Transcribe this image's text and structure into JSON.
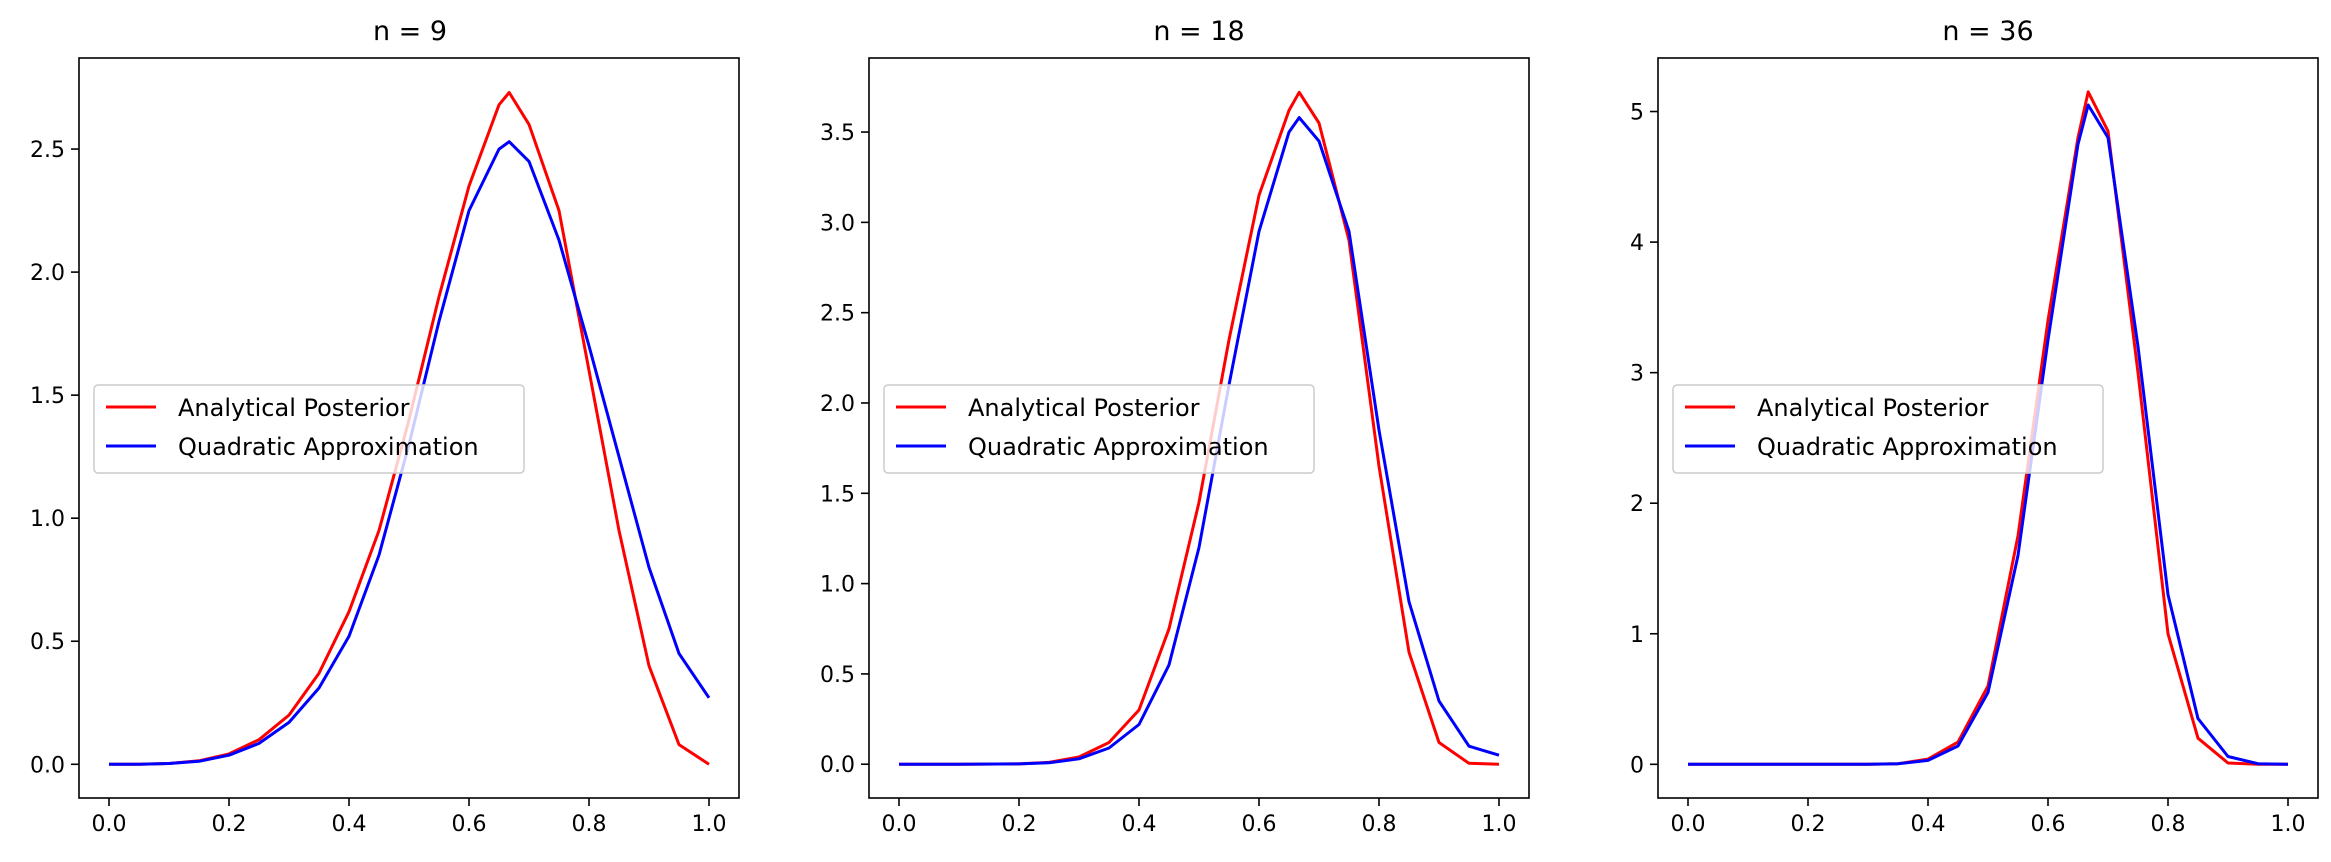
{
  "chart_data": [
    {
      "type": "line",
      "title": "n = 9",
      "xlabel": "",
      "ylabel": "",
      "xlim": [
        -0.05,
        1.05
      ],
      "ylim": [
        -0.137,
        2.87
      ],
      "xticks": [
        0.0,
        0.2,
        0.4,
        0.6,
        0.8,
        1.0
      ],
      "xtick_labels": [
        "0.0",
        "0.2",
        "0.4",
        "0.6",
        "0.8",
        "1.0"
      ],
      "yticks": [
        0.0,
        0.5,
        1.0,
        1.5,
        2.0,
        2.5
      ],
      "ytick_labels": [
        "0.0",
        "0.5",
        "1.0",
        "1.5",
        "2.0",
        "2.5"
      ],
      "grid": false,
      "legend_position": "center-left",
      "series": [
        {
          "name": "Analytical Posterior",
          "color": "#ff0000",
          "x": [
            0.0,
            0.05,
            0.1,
            0.15,
            0.2,
            0.25,
            0.3,
            0.35,
            0.4,
            0.45,
            0.5,
            0.55,
            0.6,
            0.65,
            0.667,
            0.7,
            0.75,
            0.8,
            0.85,
            0.9,
            0.95,
            1.0
          ],
          "y": [
            0.0,
            0.0,
            0.003,
            0.014,
            0.042,
            0.1,
            0.2,
            0.37,
            0.62,
            0.95,
            1.4,
            1.9,
            2.35,
            2.68,
            2.73,
            2.6,
            2.25,
            1.6,
            0.95,
            0.4,
            0.08,
            0.0
          ]
        },
        {
          "name": "Quadratic Approximation",
          "color": "#0000ff",
          "x": [
            0.0,
            0.05,
            0.1,
            0.15,
            0.2,
            0.25,
            0.3,
            0.35,
            0.4,
            0.45,
            0.5,
            0.55,
            0.6,
            0.65,
            0.667,
            0.7,
            0.75,
            0.8,
            0.85,
            0.9,
            0.95,
            1.0
          ],
          "y": [
            0.0,
            0.0,
            0.003,
            0.012,
            0.037,
            0.085,
            0.17,
            0.31,
            0.52,
            0.85,
            1.3,
            1.8,
            2.25,
            2.5,
            2.53,
            2.45,
            2.13,
            1.7,
            1.25,
            0.8,
            0.45,
            0.27
          ]
        }
      ]
    },
    {
      "type": "line",
      "title": "n = 18",
      "xlabel": "",
      "ylabel": "",
      "xlim": [
        -0.05,
        1.05
      ],
      "ylim": [
        -0.187,
        3.91
      ],
      "xticks": [
        0.0,
        0.2,
        0.4,
        0.6,
        0.8,
        1.0
      ],
      "xtick_labels": [
        "0.0",
        "0.2",
        "0.4",
        "0.6",
        "0.8",
        "1.0"
      ],
      "yticks": [
        0.0,
        0.5,
        1.0,
        1.5,
        2.0,
        2.5,
        3.0,
        3.5
      ],
      "ytick_labels": [
        "0.0",
        "0.5",
        "1.0",
        "1.5",
        "2.0",
        "2.5",
        "3.0",
        "3.5"
      ],
      "grid": false,
      "legend_position": "center-left",
      "series": [
        {
          "name": "Analytical Posterior",
          "color": "#ff0000",
          "x": [
            0.0,
            0.1,
            0.2,
            0.25,
            0.3,
            0.35,
            0.4,
            0.45,
            0.5,
            0.55,
            0.6,
            0.65,
            0.667,
            0.7,
            0.75,
            0.8,
            0.85,
            0.9,
            0.95,
            1.0
          ],
          "y": [
            0.0,
            0.0,
            0.002,
            0.01,
            0.04,
            0.12,
            0.3,
            0.75,
            1.45,
            2.35,
            3.15,
            3.62,
            3.72,
            3.55,
            2.9,
            1.65,
            0.62,
            0.12,
            0.005,
            0.0
          ]
        },
        {
          "name": "Quadratic Approximation",
          "color": "#0000ff",
          "x": [
            0.0,
            0.1,
            0.2,
            0.25,
            0.3,
            0.35,
            0.4,
            0.45,
            0.5,
            0.55,
            0.6,
            0.65,
            0.667,
            0.7,
            0.75,
            0.8,
            0.85,
            0.9,
            0.95,
            1.0
          ],
          "y": [
            0.0,
            0.0,
            0.002,
            0.008,
            0.03,
            0.09,
            0.22,
            0.55,
            1.2,
            2.1,
            2.95,
            3.5,
            3.58,
            3.45,
            2.95,
            1.85,
            0.9,
            0.35,
            0.1,
            0.05
          ]
        }
      ]
    },
    {
      "type": "line",
      "title": "n = 36",
      "xlabel": "",
      "ylabel": "",
      "xlim": [
        -0.05,
        1.05
      ],
      "ylim": [
        -0.258,
        5.41
      ],
      "xticks": [
        0.0,
        0.2,
        0.4,
        0.6,
        0.8,
        1.0
      ],
      "xtick_labels": [
        "0.0",
        "0.2",
        "0.4",
        "0.6",
        "0.8",
        "1.0"
      ],
      "yticks": [
        0,
        1,
        2,
        3,
        4,
        5
      ],
      "ytick_labels": [
        "0",
        "1",
        "2",
        "3",
        "4",
        "5"
      ],
      "grid": false,
      "legend_position": "center-left",
      "series": [
        {
          "name": "Analytical Posterior",
          "color": "#ff0000",
          "x": [
            0.0,
            0.2,
            0.3,
            0.35,
            0.4,
            0.45,
            0.5,
            0.55,
            0.6,
            0.65,
            0.667,
            0.7,
            0.75,
            0.8,
            0.85,
            0.9,
            0.95,
            1.0
          ],
          "y": [
            0.0,
            0.0,
            0.001,
            0.005,
            0.04,
            0.17,
            0.6,
            1.75,
            3.4,
            4.8,
            5.15,
            4.85,
            3.0,
            1.0,
            0.2,
            0.01,
            0.0,
            0.0
          ]
        },
        {
          "name": "Quadratic Approximation",
          "color": "#0000ff",
          "x": [
            0.0,
            0.2,
            0.3,
            0.35,
            0.4,
            0.45,
            0.5,
            0.55,
            0.6,
            0.65,
            0.667,
            0.7,
            0.75,
            0.8,
            0.85,
            0.9,
            0.95,
            1.0
          ],
          "y": [
            0.0,
            0.0,
            0.001,
            0.004,
            0.03,
            0.14,
            0.55,
            1.6,
            3.25,
            4.75,
            5.05,
            4.8,
            3.2,
            1.3,
            0.35,
            0.06,
            0.005,
            0.0
          ]
        }
      ]
    }
  ]
}
